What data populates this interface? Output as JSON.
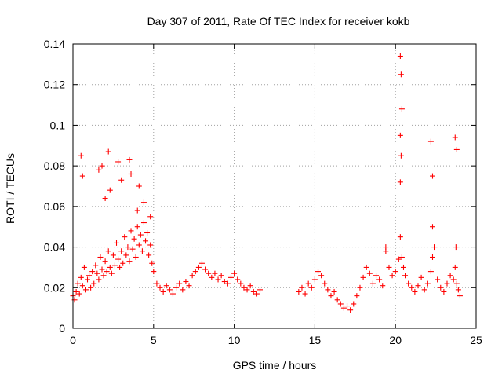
{
  "chart_data": {
    "type": "scatter",
    "title": "Day 307 of 2011, Rate Of TEC Index for receiver kokb",
    "xlabel": "GPS time / hours",
    "ylabel": "ROTI / TECUs",
    "xlim": [
      0,
      25
    ],
    "ylim": [
      0,
      0.14
    ],
    "xticks": [
      "0",
      "5",
      "10",
      "15",
      "20",
      "25"
    ],
    "yticks": [
      "0",
      "0.02",
      "0.04",
      "0.06",
      "0.08",
      "0.1",
      "0.12",
      "0.14"
    ],
    "grid": true,
    "marker": "+",
    "color": "#ff0000",
    "series": [
      {
        "x": [
          0.0,
          0.1,
          0.2,
          0.3,
          0.4,
          0.5,
          0.6,
          0.7,
          0.8,
          0.9,
          1.0,
          1.1,
          1.2,
          1.3,
          1.4,
          1.5,
          1.6,
          1.7,
          1.8,
          1.9,
          2.0,
          2.1,
          2.2,
          2.3,
          2.4,
          2.5,
          2.6,
          2.7,
          2.8,
          2.9,
          3.0,
          3.1,
          3.2,
          3.3,
          3.4,
          3.5,
          3.6,
          3.7,
          3.8,
          3.9,
          4.0,
          4.1,
          4.2,
          4.3,
          4.4,
          4.5,
          4.6,
          4.7,
          4.8,
          4.9,
          5.0,
          5.2,
          5.4,
          5.6,
          5.8,
          6.0,
          6.2,
          6.4,
          6.6,
          6.8,
          7.0,
          7.2,
          7.4,
          7.6,
          7.8,
          8.0,
          8.2,
          8.4,
          8.6,
          8.8,
          9.0,
          9.2,
          9.4,
          9.6,
          9.8,
          10.0,
          10.2,
          10.4,
          10.6,
          10.8,
          11.0,
          11.2,
          11.4,
          11.6,
          14.0,
          14.2,
          14.4,
          14.6,
          14.8,
          15.0,
          15.2,
          15.4,
          15.6,
          15.8,
          16.0,
          16.2,
          16.4,
          16.6,
          16.8,
          17.0,
          17.2,
          17.4,
          17.6,
          17.8,
          18.0,
          18.2,
          18.4,
          18.6,
          18.8,
          19.0,
          19.2,
          19.4,
          19.6,
          19.8,
          20.0,
          20.2,
          20.3,
          20.4,
          20.5,
          20.6,
          20.8,
          21.0,
          21.2,
          21.4,
          21.6,
          21.8,
          22.0,
          22.2,
          22.3,
          22.4,
          22.6,
          22.8,
          23.0,
          23.2,
          23.4,
          23.6,
          23.7,
          23.8,
          23.9,
          24.0,
          0.5,
          0.6,
          1.6,
          1.8,
          2.2,
          2.3,
          2.8,
          3.0,
          3.5,
          3.6,
          4.1,
          4.4,
          4.8,
          20.3,
          20.35,
          20.4,
          20.3,
          20.35,
          22.2,
          22.3,
          23.7,
          23.8,
          2.0,
          4.0,
          19.4,
          20.3,
          22.3,
          23.75
        ],
        "y": [
          0.016,
          0.014,
          0.018,
          0.022,
          0.017,
          0.025,
          0.021,
          0.03,
          0.019,
          0.024,
          0.026,
          0.02,
          0.028,
          0.022,
          0.031,
          0.027,
          0.024,
          0.035,
          0.029,
          0.026,
          0.033,
          0.028,
          0.038,
          0.03,
          0.027,
          0.036,
          0.031,
          0.042,
          0.034,
          0.03,
          0.038,
          0.032,
          0.045,
          0.036,
          0.04,
          0.033,
          0.048,
          0.039,
          0.044,
          0.035,
          0.05,
          0.041,
          0.046,
          0.038,
          0.052,
          0.043,
          0.047,
          0.036,
          0.041,
          0.032,
          0.028,
          0.022,
          0.02,
          0.018,
          0.021,
          0.019,
          0.017,
          0.02,
          0.022,
          0.019,
          0.023,
          0.021,
          0.026,
          0.028,
          0.03,
          0.032,
          0.029,
          0.027,
          0.025,
          0.027,
          0.024,
          0.026,
          0.023,
          0.022,
          0.025,
          0.027,
          0.024,
          0.022,
          0.02,
          0.019,
          0.021,
          0.018,
          0.017,
          0.019,
          0.018,
          0.02,
          0.017,
          0.022,
          0.02,
          0.024,
          0.028,
          0.026,
          0.022,
          0.019,
          0.016,
          0.018,
          0.014,
          0.012,
          0.01,
          0.011,
          0.009,
          0.012,
          0.016,
          0.02,
          0.025,
          0.03,
          0.027,
          0.022,
          0.026,
          0.024,
          0.021,
          0.038,
          0.03,
          0.026,
          0.028,
          0.034,
          0.045,
          0.035,
          0.03,
          0.026,
          0.022,
          0.02,
          0.018,
          0.021,
          0.025,
          0.019,
          0.022,
          0.028,
          0.035,
          0.04,
          0.024,
          0.02,
          0.018,
          0.022,
          0.026,
          0.024,
          0.03,
          0.022,
          0.019,
          0.016,
          0.085,
          0.075,
          0.078,
          0.08,
          0.087,
          0.068,
          0.082,
          0.073,
          0.083,
          0.076,
          0.07,
          0.062,
          0.055,
          0.134,
          0.125,
          0.108,
          0.095,
          0.085,
          0.092,
          0.075,
          0.094,
          0.088,
          0.064,
          0.058,
          0.04,
          0.072,
          0.05,
          0.04
        ]
      }
    ]
  }
}
